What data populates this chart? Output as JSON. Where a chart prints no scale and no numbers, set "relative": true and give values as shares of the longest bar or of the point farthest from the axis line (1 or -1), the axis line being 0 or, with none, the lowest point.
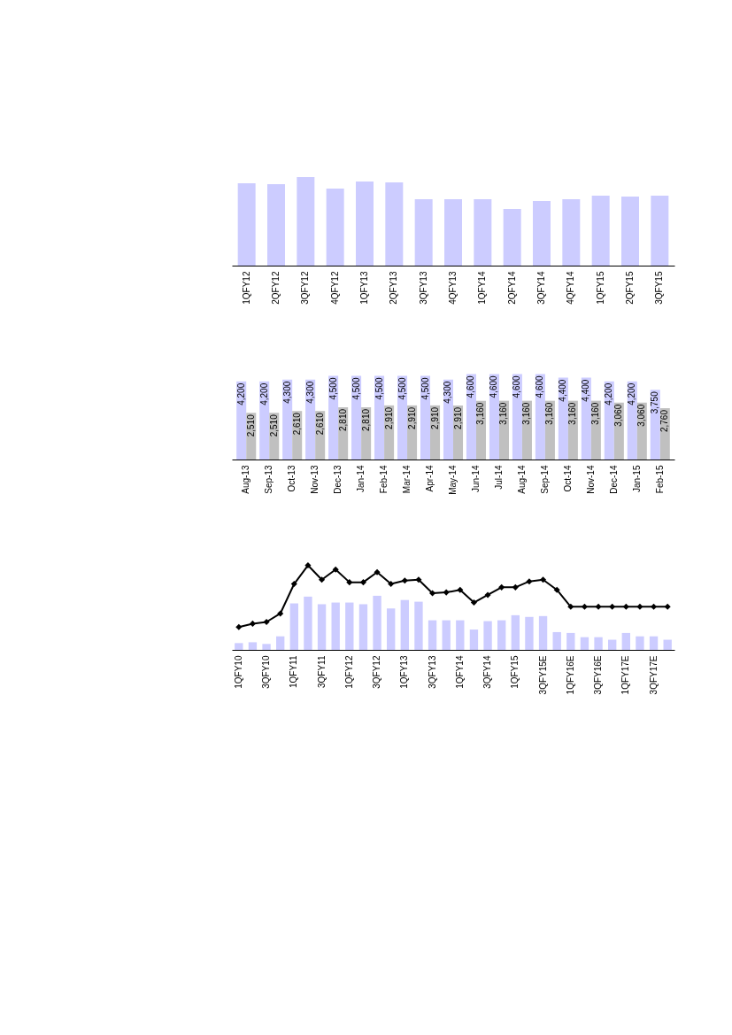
{
  "chart_data": [
    {
      "type": "bar",
      "relative": true,
      "color": "#ccccff",
      "categories": [
        "1QFY12",
        "2QFY12",
        "3QFY12",
        "4QFY12",
        "1QFY13",
        "2QFY13",
        "3QFY13",
        "4QFY13",
        "1QFY14",
        "2QFY14",
        "3QFY14",
        "4QFY14",
        "1QFY15",
        "2QFY15",
        "3QFY15"
      ],
      "values": [
        0.93,
        0.92,
        1,
        0.87,
        0.95,
        0.94,
        0.75,
        0.75,
        0.75,
        0.64,
        0.73,
        0.75,
        0.79,
        0.78,
        0.79
      ]
    },
    {
      "type": "bar",
      "categories": [
        "Aug-13",
        "Sep-13",
        "Oct-13",
        "Nov-13",
        "Dec-13",
        "Jan-14",
        "Feb-14",
        "Mar-14",
        "Apr-14",
        "May-14",
        "Jun-14",
        "Jul-14",
        "Aug-14",
        "Sep-14",
        "Oct-14",
        "Nov-14",
        "Dec-14",
        "Jan-15",
        "Feb-15"
      ],
      "series": [
        {
          "color": "#ccccff",
          "values": [
            4200,
            4200,
            4300,
            4300,
            4500,
            4500,
            4500,
            4500,
            4500,
            4300,
            4600,
            4600,
            4600,
            4600,
            4400,
            4400,
            4200,
            4200,
            3750
          ],
          "value_labels": [
            "4,200",
            "4,200",
            "4,300",
            "4,300",
            "4,500",
            "4,500",
            "4,500",
            "4,500",
            "4,500",
            "4,300",
            "4,600",
            "4,600",
            "4,600",
            "4,600",
            "4,400",
            "4,400",
            "4,200",
            "4,200",
            "3,750"
          ]
        },
        {
          "color": "#c0c0c0",
          "values": [
            2510,
            2510,
            2610,
            2610,
            2810,
            2810,
            2910,
            2910,
            2910,
            2910,
            3160,
            3160,
            3160,
            3160,
            3160,
            3160,
            3060,
            3060,
            2760
          ],
          "value_labels": [
            "2,510",
            "2,510",
            "2,610",
            "2,610",
            "2,810",
            "2,810",
            "2,910",
            "2,910",
            "2,910",
            "2,910",
            "3,160",
            "3,160",
            "3,160",
            "3,160",
            "3,160",
            "3,160",
            "3,060",
            "3,060",
            "2,760"
          ]
        }
      ]
    },
    {
      "type": "bar",
      "relative": true,
      "marker": "diamond",
      "categories": [
        "1QFY10",
        null,
        "3QFY10",
        null,
        "1QFY11",
        null,
        "3QFY11",
        null,
        "1QFY12",
        null,
        "3QFY12",
        null,
        "1QFY13",
        null,
        "3QFY13",
        null,
        "1QFY14",
        null,
        "3QFY14",
        null,
        "1QFY15",
        null,
        "3QFY15E",
        null,
        "1QFY16E",
        null,
        "3QFY16E",
        null,
        "1QFY17E",
        null,
        "3QFY17E",
        null
      ],
      "series": [
        {
          "type": "bar",
          "color": "#ccccff",
          "values": [
            0.08,
            0.09,
            0.07,
            0.16,
            0.55,
            0.63,
            0.54,
            0.56,
            0.56,
            0.54,
            0.64,
            0.49,
            0.59,
            0.57,
            0.35,
            0.35,
            0.35,
            0.24,
            0.34,
            0.35,
            0.41,
            0.39,
            0.4,
            0.21,
            0.2,
            0.15,
            0.15,
            0.12,
            0.2,
            0.16,
            0.16,
            0.12
          ]
        },
        {
          "type": "line",
          "color": "#000000",
          "values": [
            0.27,
            0.31,
            0.33,
            0.43,
            0.78,
            1,
            0.83,
            0.95,
            0.8,
            0.8,
            0.92,
            0.78,
            0.82,
            0.83,
            0.67,
            0.68,
            0.71,
            0.56,
            0.65,
            0.74,
            0.74,
            0.81,
            0.83,
            0.71,
            0.51,
            0.51,
            0.51,
            0.51,
            0.51,
            0.51,
            0.51,
            0.51
          ]
        }
      ]
    }
  ]
}
